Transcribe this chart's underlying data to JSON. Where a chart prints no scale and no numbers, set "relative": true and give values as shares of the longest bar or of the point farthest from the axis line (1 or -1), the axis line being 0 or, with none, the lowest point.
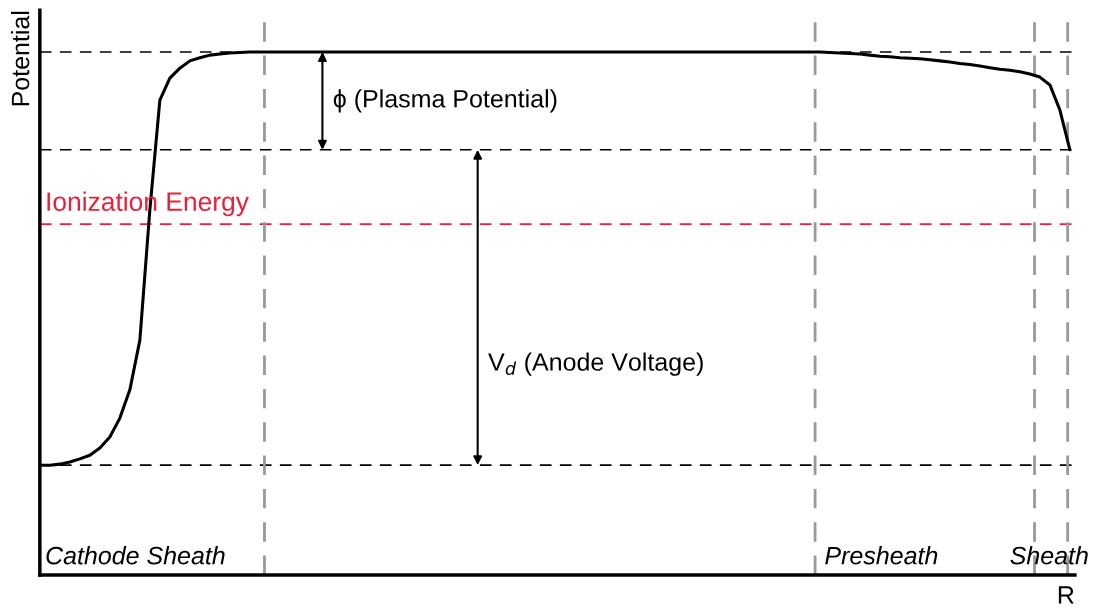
{
  "chart_data": {
    "type": "line",
    "relative": true,
    "xlabel": "R",
    "ylabel": "Potential",
    "categories": [
      null,
      null,
      null,
      null,
      null,
      null,
      null,
      null,
      null,
      null,
      null,
      null,
      null,
      null,
      null,
      null,
      null,
      null,
      null,
      null,
      null,
      null,
      null,
      null,
      null,
      null,
      null,
      null,
      null,
      null,
      null,
      null,
      null,
      null,
      null,
      null,
      null,
      null,
      null,
      null,
      null,
      null,
      null,
      null,
      null,
      null,
      null,
      null,
      null,
      null,
      null,
      null,
      null,
      null,
      null,
      null,
      null,
      null,
      null,
      null,
      null,
      null,
      null,
      null,
      null,
      null,
      null,
      null,
      null,
      null,
      null,
      null,
      null,
      null,
      null,
      null,
      null,
      null,
      null,
      null,
      null,
      null,
      null,
      null,
      null,
      null,
      null,
      null,
      null,
      null,
      null,
      null,
      null,
      null,
      null,
      null,
      null,
      null,
      null,
      null,
      null,
      null,
      null,
      null
    ],
    "series": [
      {
        "color": "#000000",
        "values": [
          0.21,
          0.21,
          0.212,
          0.216,
          0.222,
          0.229,
          0.243,
          0.264,
          0.3,
          0.354,
          0.449,
          0.698,
          0.908,
          0.95,
          0.969,
          0.983,
          0.989,
          0.994,
          0.996,
          0.998,
          0.999,
          1.0,
          1.0,
          1.0,
          1.0,
          1.0,
          1.0,
          1.0,
          1.0,
          1.0,
          1.0,
          1.0,
          1.0,
          1.0,
          1.0,
          1.0,
          1.0,
          1.0,
          1.0,
          1.0,
          1.0,
          1.0,
          1.0,
          1.0,
          1.0,
          1.0,
          1.0,
          1.0,
          1.0,
          1.0,
          1.0,
          1.0,
          1.0,
          1.0,
          1.0,
          1.0,
          1.0,
          1.0,
          1.0,
          1.0,
          1.0,
          1.0,
          1.0,
          1.0,
          1.0,
          1.0,
          1.0,
          1.0,
          1.0,
          1.0,
          1.0,
          1.0,
          1.0,
          1.0,
          1.0,
          1.0,
          1.0,
          1.0,
          1.0,
          0.999,
          0.998,
          0.997,
          0.996,
          0.994,
          0.992,
          0.991,
          0.989,
          0.988,
          0.987,
          0.985,
          0.983,
          0.981,
          0.978,
          0.976,
          0.973,
          0.97,
          0.967,
          0.965,
          0.962,
          0.958,
          0.952,
          0.937,
          0.889,
          0.813
        ]
      }
    ],
    "ref_lines": [
      {
        "axis": "y",
        "value": 1.0,
        "color": "#000000",
        "line_style": "dashed"
      },
      {
        "axis": "y",
        "value": 0.813,
        "color": "#000000",
        "line_style": "dashed"
      },
      {
        "axis": "y",
        "value": 0.671,
        "color": "#e8203a",
        "line_style": "dashed",
        "label": "Ionization Energy"
      },
      {
        "axis": "y",
        "value": 0.21,
        "color": "#000000",
        "line_style": "dashed"
      }
    ],
    "annotations": [
      "ϕ (Plasma Potential)",
      "V$_{d}$ (Anode Voltage)",
      "Cathode Sheath",
      "Presheath",
      "Sheath"
    ]
  }
}
